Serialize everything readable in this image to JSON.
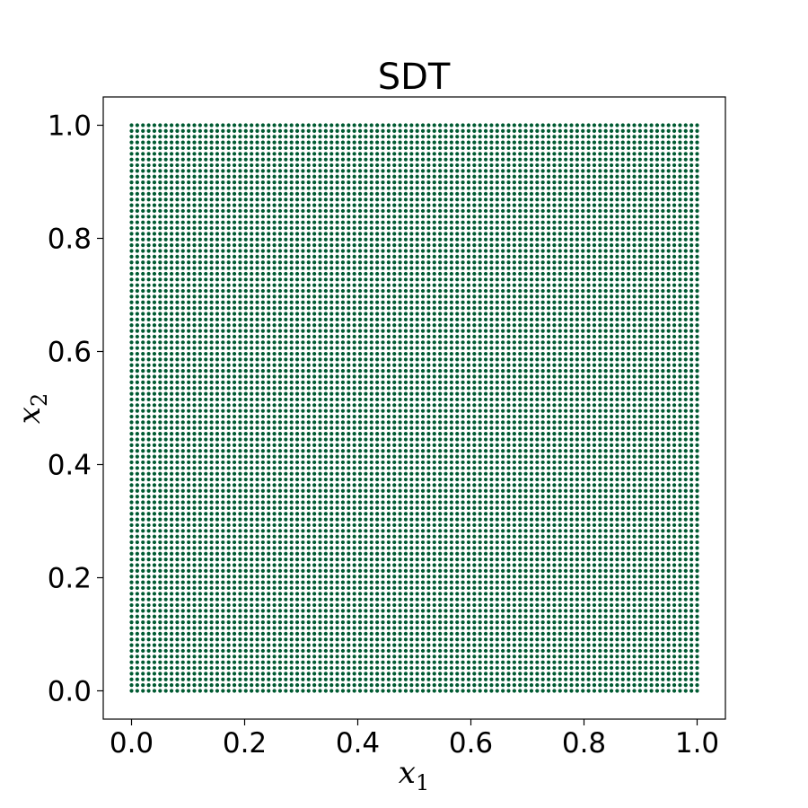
{
  "chart_data": {
    "type": "scatter",
    "title": "SDT",
    "xlabel": {
      "base": "x",
      "sub": "1"
    },
    "ylabel": {
      "base": "x",
      "sub": "2"
    },
    "xlim": [
      -0.05,
      1.05
    ],
    "ylim": [
      -0.05,
      1.05
    ],
    "xticks": [
      0.0,
      0.2,
      0.4,
      0.6,
      0.8,
      1.0
    ],
    "yticks": [
      0.0,
      0.2,
      0.4,
      0.6,
      0.8,
      1.0
    ],
    "xtick_labels": [
      "0.0",
      "0.2",
      "0.4",
      "0.6",
      "0.8",
      "1.0"
    ],
    "ytick_labels": [
      "0.0",
      "0.2",
      "0.4",
      "0.6",
      "0.8",
      "1.0"
    ],
    "grid": false,
    "series": [
      {
        "points": "uniform grid, 100 x 100 points over [0,1] x [0,1]",
        "x_range": [
          0.0,
          1.0
        ],
        "y_range": [
          0.0,
          1.0
        ],
        "n_x": 100,
        "n_y": 100,
        "color": "#005a32"
      }
    ]
  }
}
